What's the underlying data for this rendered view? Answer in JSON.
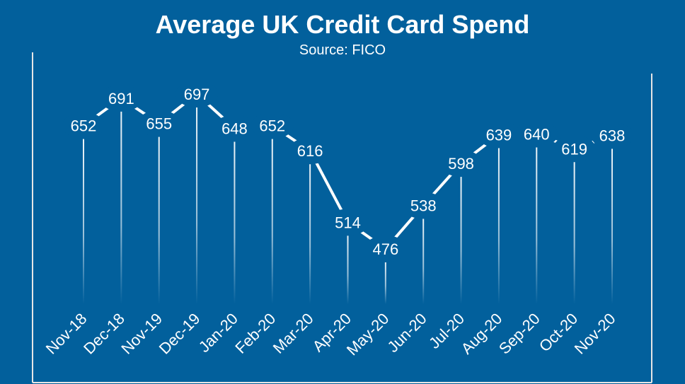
{
  "chart_data": {
    "type": "line",
    "title": "Average UK Credit Card Spend",
    "subtitle": "Source: FICO",
    "categories": [
      "Nov-18",
      "Dec-18",
      "Nov-19",
      "Dec-19",
      "Jan-20",
      "Feb-20",
      "Mar-20",
      "Apr-20",
      "May-20",
      "Jun-20",
      "Jul-20",
      "Aug-20",
      "Sep-20",
      "Oct-20",
      "Nov-20"
    ],
    "values": [
      652,
      691,
      655,
      697,
      648,
      652,
      616,
      514,
      476,
      538,
      598,
      639,
      640,
      619,
      638
    ],
    "data_labels": true,
    "grid": false,
    "colors": {
      "background": "#02609c",
      "line": "#ffffff",
      "text": "#ffffff"
    }
  }
}
